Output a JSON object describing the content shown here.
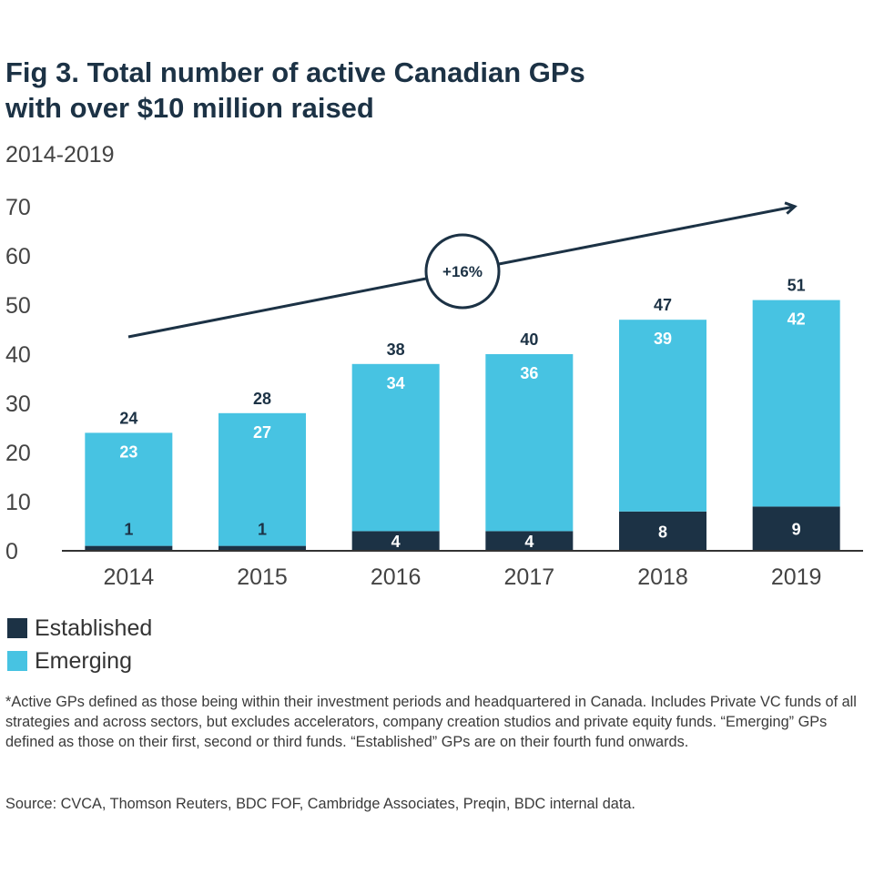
{
  "title_line1": "Fig 3. Total number of active Canadian GPs",
  "title_line2": "with over $10 million raised",
  "subtitle": "2014-2019",
  "growth_annotation": "+16%",
  "legend": [
    {
      "label": "Established",
      "color": "#1c3245"
    },
    {
      "label": "Emerging",
      "color": "#47c3e2"
    }
  ],
  "footnote": "*Active GPs defined as those being within their investment periods and headquartered in Canada. Includes Private VC funds of all strategies and across sectors, but excludes accelerators, company creation studios and private equity funds. “Emerging” GPs defined as those on their first, second or third funds. “Established” GPs are on their fourth fund onwards.",
  "source": "Source: CVCA, Thomson Reuters, BDC FOF, Cambridge Associates, Preqin, BDC internal data.",
  "chart_data": {
    "type": "bar",
    "stacked": true,
    "categories": [
      "2014",
      "2015",
      "2016",
      "2017",
      "2018",
      "2019"
    ],
    "series": [
      {
        "name": "Established",
        "values": [
          1,
          1,
          4,
          4,
          8,
          9
        ],
        "color": "#1c3245"
      },
      {
        "name": "Emerging",
        "values": [
          23,
          27,
          34,
          36,
          39,
          42
        ],
        "color": "#47c3e2"
      }
    ],
    "totals": [
      24,
      28,
      38,
      40,
      47,
      51
    ],
    "ylim": [
      0,
      70
    ],
    "yticks": [
      0,
      10,
      20,
      30,
      40,
      50,
      60,
      70
    ],
    "grid": false
  }
}
